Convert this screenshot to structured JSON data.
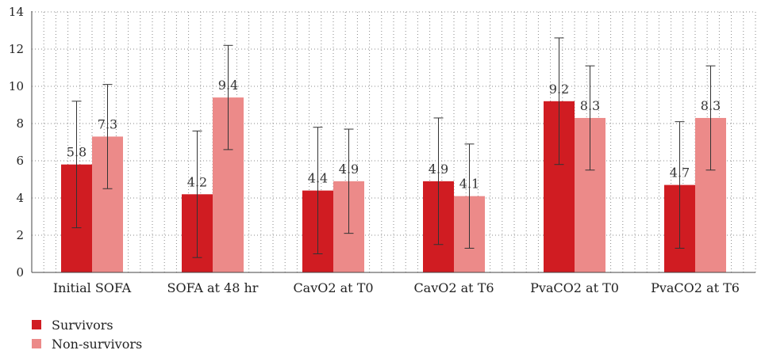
{
  "chart_data": {
    "type": "bar",
    "categories": [
      "Initial SOFA",
      "SOFA at 48 hr",
      "CavO2 at T0",
      "CavO2 at T6",
      "PvaCO2 at T0",
      "PvaCO2 at T6"
    ],
    "series": [
      {
        "name": "Survivors",
        "color": "#d01c22",
        "values": [
          5.8,
          4.2,
          4.4,
          4.9,
          9.2,
          4.7
        ],
        "labels": [
          "5.8",
          "4.2",
          "4.4",
          "4.9",
          "9.2",
          "4.7"
        ],
        "err_low": [
          2.4,
          0.8,
          1.0,
          1.5,
          5.8,
          1.3
        ],
        "err_high": [
          9.2,
          7.6,
          7.8,
          8.3,
          12.6,
          8.1
        ]
      },
      {
        "name": "Non-survivors",
        "color": "#ec8a89",
        "values": [
          7.3,
          9.4,
          4.9,
          4.1,
          8.3,
          8.3
        ],
        "labels": [
          "7.3",
          "9.4",
          "4.9",
          "4.1",
          "8.3",
          "8.3"
        ],
        "err_low": [
          4.5,
          6.6,
          2.1,
          1.3,
          5.5,
          5.5
        ],
        "err_high": [
          10.1,
          12.2,
          7.7,
          6.9,
          11.1,
          11.1
        ]
      }
    ],
    "ylim": [
      0,
      14
    ],
    "yticks": [
      "0",
      "2",
      "4",
      "6",
      "8",
      "10",
      "12",
      "14"
    ],
    "grid": true,
    "legend_position": "bottom-left"
  }
}
